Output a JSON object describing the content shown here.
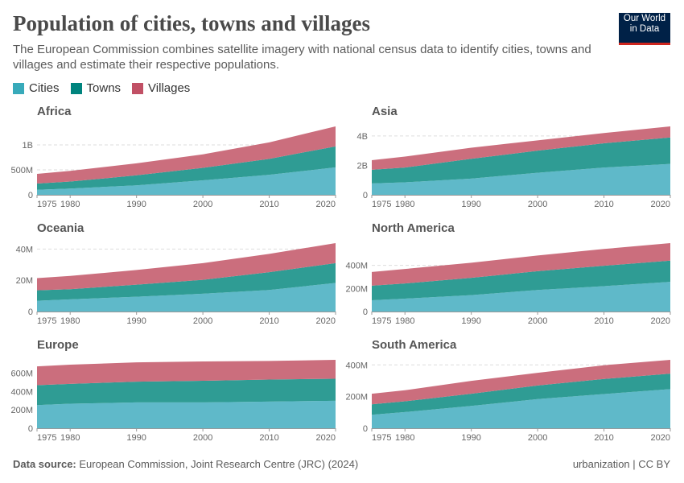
{
  "header": {
    "title": "Population of cities, towns and villages",
    "subtitle": "The European Commission combines satellite imagery with national census data to identify cities, towns and villages and estimate their respective populations.",
    "logo_line1": "Our World",
    "logo_line2": "in Data",
    "logo_colors": {
      "background": "#002147",
      "underline": "#ce261e"
    }
  },
  "legend": [
    {
      "label": "Cities",
      "color": "#38aaba"
    },
    {
      "label": "Towns",
      "color": "#00847e"
    },
    {
      "label": "Villages",
      "color": "#c15065"
    }
  ],
  "footer": {
    "source_label": "Data source:",
    "source_text": "European Commission, Joint Research Centre (JRC) (2024)",
    "right": "urbanization | CC BY"
  },
  "chart_data": [
    {
      "type": "area",
      "stacked": true,
      "title": "Africa",
      "x": [
        1975,
        1980,
        1990,
        2000,
        2010,
        2020
      ],
      "xticks": [
        "1975",
        "1980",
        "1990",
        "2000",
        "2010",
        "2020"
      ],
      "yticks": [
        {
          "value": 0,
          "label": "0"
        },
        {
          "value": 500,
          "label": "500M"
        },
        {
          "value": 1000,
          "label": "1B"
        }
      ],
      "series": [
        {
          "name": "Cities",
          "values": [
            100,
            125,
            190,
            290,
            400,
            550
          ]
        },
        {
          "name": "Towns",
          "values": [
            125,
            140,
            200,
            250,
            320,
            420
          ]
        },
        {
          "name": "Villages",
          "values": [
            195,
            215,
            240,
            270,
            330,
            400
          ]
        }
      ]
    },
    {
      "type": "area",
      "stacked": true,
      "title": "Asia",
      "x": [
        1975,
        1980,
        1990,
        2000,
        2010,
        2020
      ],
      "xticks": [
        "1975",
        "1980",
        "1990",
        "2000",
        "2010",
        "2020"
      ],
      "yticks": [
        {
          "value": 0,
          "label": "0"
        },
        {
          "value": 2000,
          "label": "2B"
        },
        {
          "value": 4000,
          "label": "4B"
        }
      ],
      "series": [
        {
          "name": "Cities",
          "values": [
            770,
            850,
            1100,
            1500,
            1850,
            2100
          ]
        },
        {
          "name": "Towns",
          "values": [
            930,
            1000,
            1350,
            1500,
            1650,
            1800
          ]
        },
        {
          "name": "Villages",
          "values": [
            650,
            750,
            750,
            700,
            700,
            750
          ]
        }
      ]
    },
    {
      "type": "area",
      "stacked": true,
      "title": "Oceania",
      "x": [
        1975,
        1980,
        1990,
        2000,
        2010,
        2020
      ],
      "xticks": [
        "1975",
        "1980",
        "1990",
        "2000",
        "2010",
        "2020"
      ],
      "yticks": [
        {
          "value": 0,
          "label": "0"
        },
        {
          "value": 20,
          "label": "20M"
        },
        {
          "value": 40,
          "label": "40M"
        }
      ],
      "series": [
        {
          "name": "Cities",
          "values": [
            6.9,
            7.8,
            9.5,
            11.4,
            13.8,
            18.3
          ]
        },
        {
          "name": "Towns",
          "values": [
            6.7,
            6.5,
            7.7,
            8.9,
            11.4,
            12.7
          ]
        },
        {
          "name": "Villages",
          "values": [
            7.8,
            8.5,
            9.4,
            10.7,
            11.7,
            12.8
          ]
        }
      ]
    },
    {
      "type": "area",
      "stacked": true,
      "title": "North America",
      "x": [
        1975,
        1980,
        1990,
        2000,
        2010,
        2020
      ],
      "xticks": [
        "1975",
        "1980",
        "1990",
        "2000",
        "2010",
        "2020"
      ],
      "yticks": [
        {
          "value": 0,
          "label": "0"
        },
        {
          "value": 200,
          "label": "200M"
        },
        {
          "value": 400,
          "label": "400M"
        }
      ],
      "series": [
        {
          "name": "Cities",
          "values": [
            98,
            112,
            142,
            187,
            220,
            257
          ]
        },
        {
          "name": "Towns",
          "values": [
            126,
            131,
            150,
            163,
            177,
            184
          ]
        },
        {
          "name": "Villages",
          "values": [
            119,
            126,
            131,
            136,
            145,
            152
          ]
        }
      ]
    },
    {
      "type": "area",
      "stacked": true,
      "title": "Europe",
      "x": [
        1975,
        1980,
        1990,
        2000,
        2010,
        2020
      ],
      "xticks": [
        "1975",
        "1980",
        "1990",
        "2000",
        "2010",
        "2020"
      ],
      "yticks": [
        {
          "value": 0,
          "label": "0"
        },
        {
          "value": 200,
          "label": "200M"
        },
        {
          "value": 400,
          "label": "400M"
        },
        {
          "value": 600,
          "label": "600M"
        }
      ],
      "series": [
        {
          "name": "Cities",
          "values": [
            253,
            268,
            282,
            282,
            291,
            300
          ]
        },
        {
          "name": "Towns",
          "values": [
            217,
            217,
            227,
            236,
            241,
            241
          ]
        },
        {
          "name": "Villages",
          "values": [
            206,
            209,
            211,
            211,
            203,
            206
          ]
        }
      ]
    },
    {
      "type": "area",
      "stacked": true,
      "title": "South America",
      "x": [
        1975,
        1980,
        1990,
        2000,
        2010,
        2020
      ],
      "xticks": [
        "1975",
        "1980",
        "1990",
        "2000",
        "2010",
        "2020"
      ],
      "yticks": [
        {
          "value": 0,
          "label": "0"
        },
        {
          "value": 200,
          "label": "200M"
        },
        {
          "value": 400,
          "label": "400M"
        }
      ],
      "series": [
        {
          "name": "Cities",
          "values": [
            85,
            102,
            141,
            184,
            216,
            247
          ]
        },
        {
          "name": "Towns",
          "values": [
            66,
            68,
            77,
            86,
            95,
            98
          ]
        },
        {
          "name": "Villages",
          "values": [
            67,
            70,
            81,
            80,
            87,
            87
          ]
        }
      ]
    }
  ],
  "area_colors": [
    "#5fb9c9",
    "#2f9c94",
    "#cb6e7d"
  ]
}
